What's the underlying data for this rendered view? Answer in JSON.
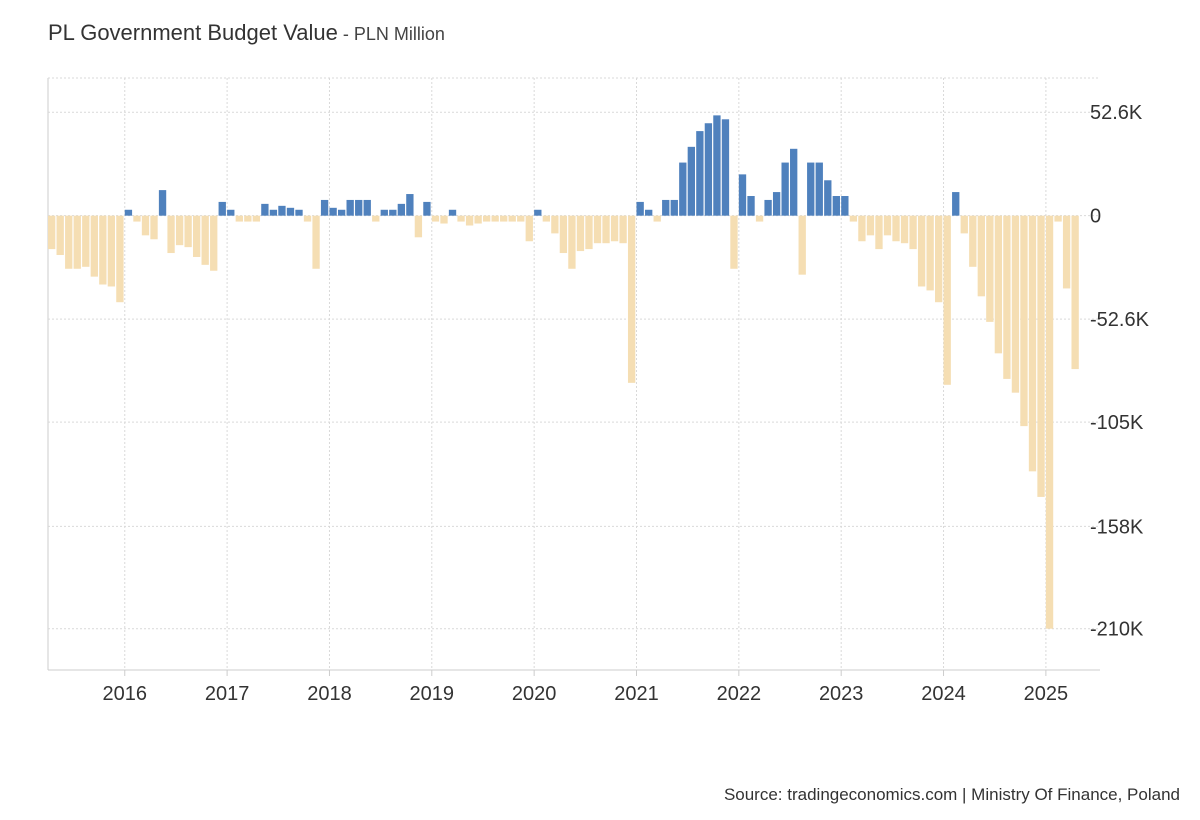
{
  "header": {
    "title": "PL Government Budget Value",
    "subtitle_separator": " - ",
    "subtitle": "PLN Million"
  },
  "footer": {
    "source": "Source: tradingeconomics.com | Ministry Of Finance, Poland"
  },
  "chart_data": {
    "type": "bar",
    "x_start": "2015-04",
    "frequency": "monthly",
    "ylim": [
      -231000,
      70000
    ],
    "y_ticks": [
      52600,
      0,
      -52600,
      -105000,
      -158000,
      -210000
    ],
    "y_tick_labels": [
      "52.6K",
      "0",
      "-52.6K",
      "-105K",
      "-158K",
      "-210K"
    ],
    "x_tick_labels": [
      "2016",
      "2017",
      "2018",
      "2019",
      "2020",
      "2021",
      "2022",
      "2023",
      "2024",
      "2025"
    ],
    "grid": true,
    "colors": {
      "positive": "#4f81bd",
      "negative": "#f5deb3",
      "grid": "#d9d9d9",
      "axis": "#cccccc"
    },
    "values": [
      -17000,
      -20000,
      -27000,
      -27000,
      -26000,
      -31000,
      -35000,
      -36000,
      -44000,
      3000,
      -3000,
      -10000,
      -12000,
      13000,
      -19000,
      -15000,
      -16000,
      -21000,
      -25000,
      -28000,
      7000,
      3000,
      -3000,
      -3000,
      -3000,
      6000,
      3000,
      5000,
      4000,
      3000,
      -3000,
      -27000,
      8000,
      4000,
      3000,
      8000,
      8000,
      8000,
      -3000,
      3000,
      3000,
      6000,
      11000,
      -11000,
      7000,
      -3000,
      -4000,
      3000,
      -3000,
      -5000,
      -4000,
      -3000,
      -3000,
      -3000,
      -3000,
      -3000,
      -13000,
      3000,
      -3000,
      -9000,
      -19000,
      -27000,
      -18000,
      -17000,
      -14000,
      -14000,
      -13000,
      -14000,
      -85000,
      7000,
      3000,
      -3000,
      8000,
      8000,
      27000,
      35000,
      43000,
      47000,
      51000,
      49000,
      -27000,
      21000,
      10000,
      -3000,
      8000,
      12000,
      27000,
      34000,
      -30000,
      27000,
      27000,
      18000,
      10000,
      10000,
      -3000,
      -13000,
      -10000,
      -17000,
      -10000,
      -13000,
      -14000,
      -17000,
      -36000,
      -38000,
      -44000,
      -86000,
      12000,
      -9000,
      -26000,
      -41000,
      -54000,
      -70000,
      -83000,
      -90000,
      -107000,
      -130000,
      -143000,
      -210000,
      -3000,
      -37000,
      -78000
    ]
  }
}
